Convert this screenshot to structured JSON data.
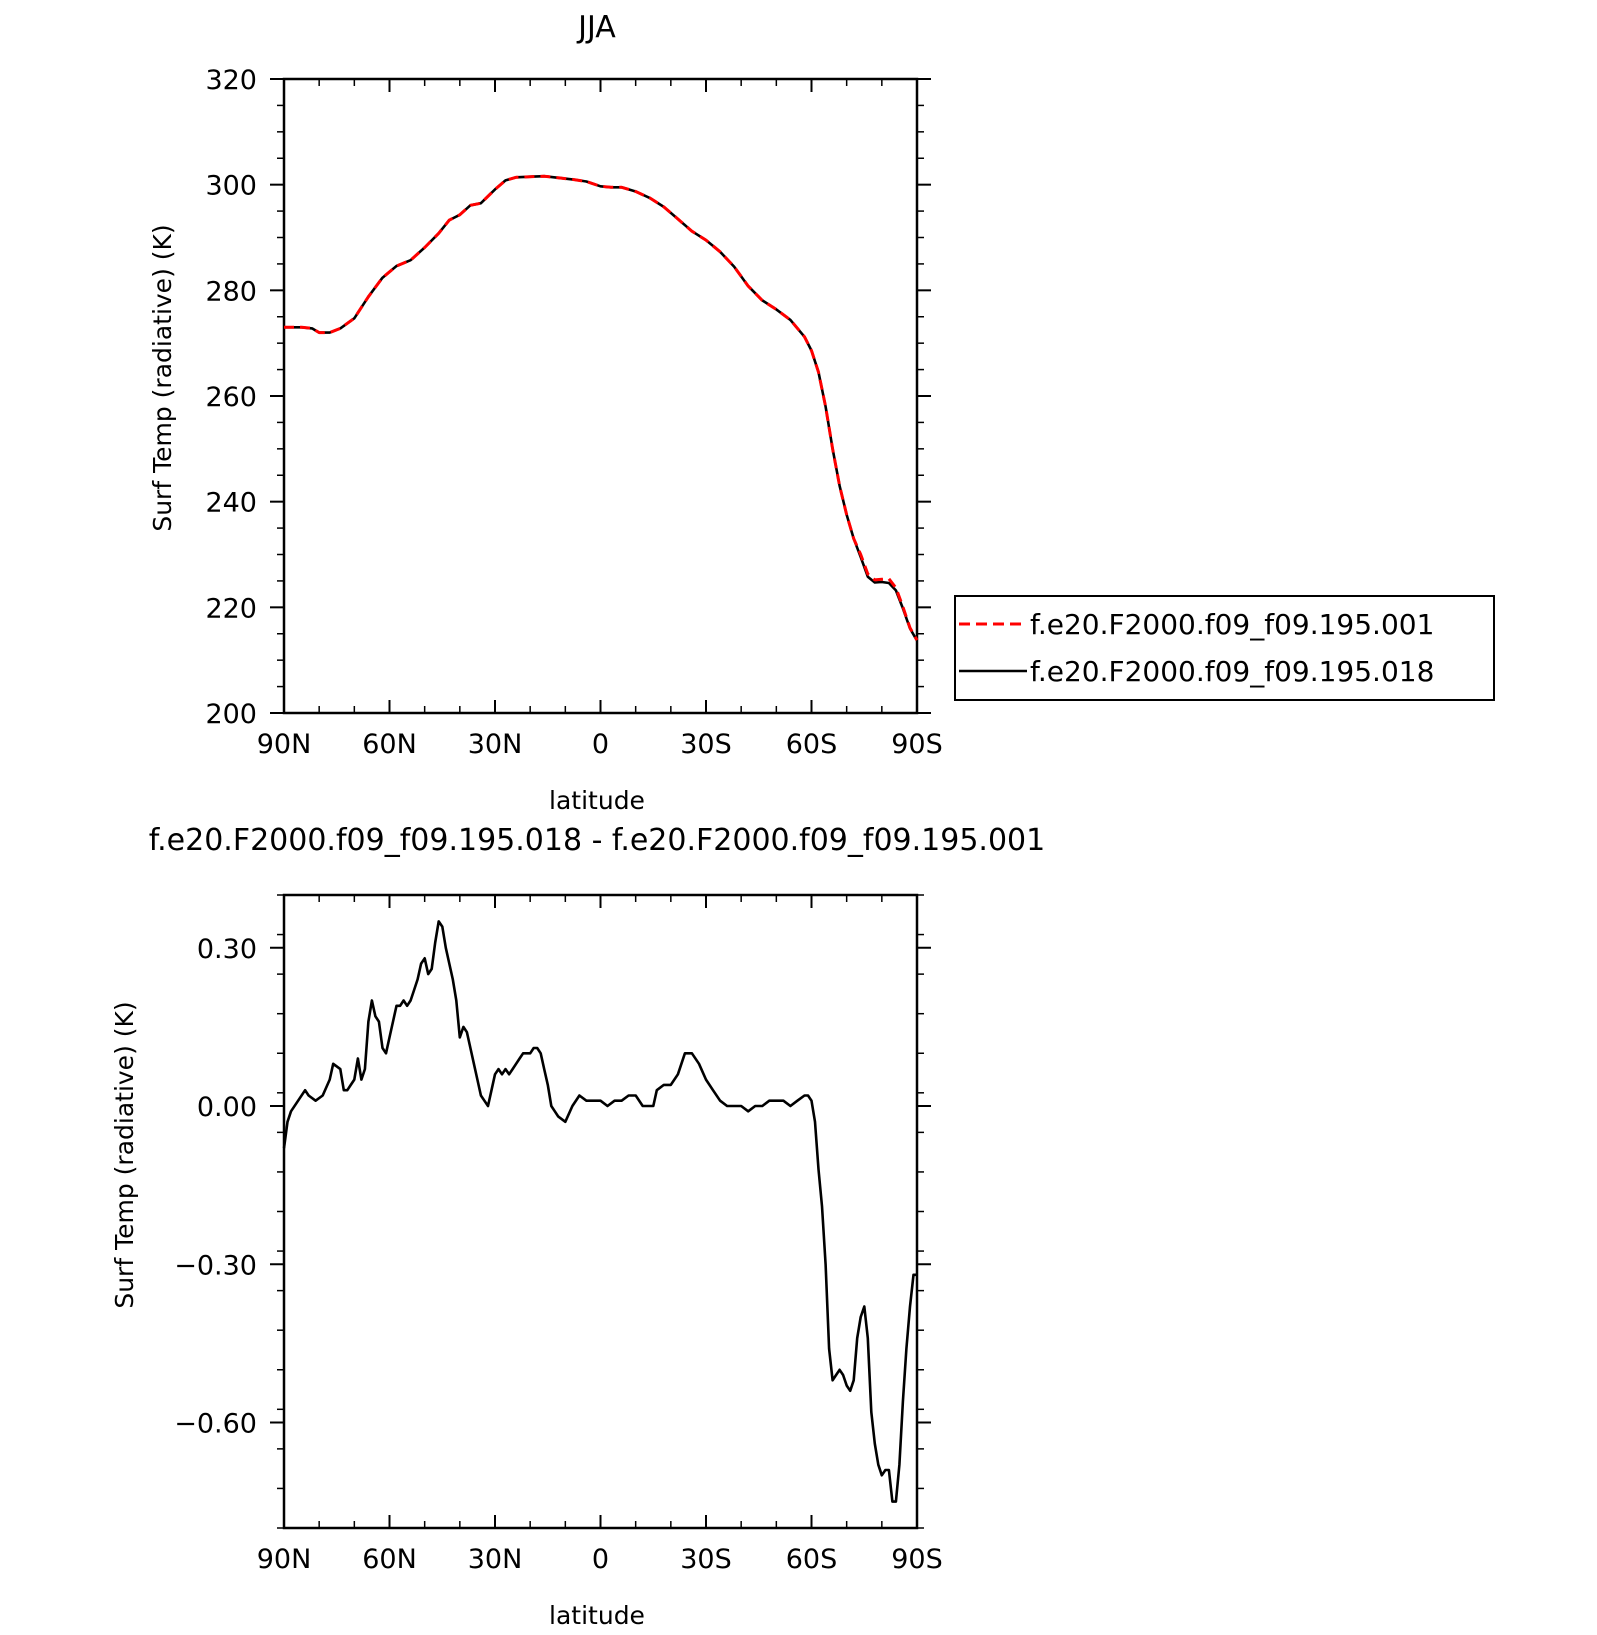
{
  "chart_data": [
    {
      "type": "line",
      "title": "JJA",
      "xlabel": "latitude",
      "ylabel": "Surf Temp (radiative) (K)",
      "xlim": [
        90,
        -90
      ],
      "ylim": [
        200,
        320
      ],
      "x_ticks": [
        90,
        60,
        30,
        0,
        -30,
        -60,
        -90
      ],
      "x_tick_labels": [
        "90N",
        "60N",
        "30N",
        "0",
        "30S",
        "60S",
        "90S"
      ],
      "y_ticks": [
        200,
        220,
        240,
        260,
        280,
        300,
        320
      ],
      "y_tick_labels": [
        "200",
        "220",
        "240",
        "260",
        "280",
        "300",
        "320"
      ],
      "legend_position": "right",
      "x": [
        90,
        85,
        82,
        80,
        77,
        74,
        70,
        66,
        62,
        58,
        54,
        50,
        46,
        43,
        40,
        37,
        34,
        30,
        27,
        24,
        20,
        16,
        12,
        8,
        4,
        0,
        -3,
        -6,
        -10,
        -14,
        -18,
        -22,
        -26,
        -30,
        -34,
        -38,
        -42,
        -46,
        -50,
        -54,
        -58,
        -60,
        -62,
        -64,
        -66,
        -68,
        -70,
        -72,
        -74,
        -76,
        -78,
        -80,
        -82,
        -84,
        -86,
        -88,
        -90
      ],
      "series": [
        {
          "name": "f.e20.F2000.f09_f09.195.001",
          "color": "#ff0000",
          "dash": "dashed",
          "values": [
            273,
            273,
            272.8,
            272,
            272,
            272.8,
            274.7,
            278.8,
            282.4,
            284.6,
            285.7,
            288.1,
            290.8,
            293.3,
            294.3,
            296.1,
            296.5,
            299.1,
            300.8,
            301.4,
            301.5,
            301.6,
            301.3,
            301.0,
            300.6,
            299.7,
            299.5,
            299.5,
            298.7,
            297.5,
            295.8,
            293.5,
            291.2,
            289.5,
            287.3,
            284.5,
            280.8,
            278.1,
            276.4,
            274.4,
            271.2,
            268.6,
            264.5,
            258,
            250,
            243,
            237.5,
            233,
            230,
            226.3,
            225.2,
            225.3,
            225.4,
            223.7,
            220.1,
            216.1,
            213.8
          ]
        },
        {
          "name": "f.e20.F2000.f09_f09.195.018",
          "color": "#000000",
          "dash": "solid",
          "values": [
            273,
            273,
            272.8,
            272,
            272,
            272.8,
            274.7,
            278.8,
            282.4,
            284.6,
            285.7,
            288.1,
            290.8,
            293.3,
            294.3,
            296.1,
            296.5,
            299.1,
            300.8,
            301.4,
            301.5,
            301.6,
            301.3,
            301.0,
            300.6,
            299.7,
            299.5,
            299.5,
            298.7,
            297.5,
            295.8,
            293.5,
            291.2,
            289.5,
            287.3,
            284.5,
            280.8,
            278.1,
            276.4,
            274.4,
            271.2,
            268.6,
            264.5,
            258,
            250,
            243,
            237.5,
            233,
            229.5,
            225.8,
            224.7,
            224.8,
            224.6,
            223.2,
            219.8,
            216,
            213.7
          ]
        }
      ]
    },
    {
      "type": "line",
      "title": "f.e20.F2000.f09_f09.195.018 - f.e20.F2000.f09_f09.195.001",
      "xlabel": "latitude",
      "ylabel": "Surf Temp (radiative) (K)",
      "xlim": [
        90,
        -90
      ],
      "ylim": [
        -0.8,
        0.4
      ],
      "x_ticks": [
        90,
        60,
        30,
        0,
        -30,
        -60,
        -90
      ],
      "x_tick_labels": [
        "90N",
        "60N",
        "30N",
        "0",
        "30S",
        "60S",
        "90S"
      ],
      "y_ticks": [
        0.3,
        0.0,
        -0.3,
        -0.6
      ],
      "y_tick_labels": [
        "0.30",
        "0.00",
        "−0.30",
        "−0.60"
      ],
      "x": [
        90,
        89,
        88,
        86,
        84,
        83,
        81,
        79,
        77,
        76,
        74,
        73,
        72,
        71,
        70,
        69,
        68,
        67,
        66,
        65,
        64,
        63,
        62,
        61,
        60,
        59,
        58,
        57,
        56,
        55,
        54,
        53,
        52,
        51,
        50,
        49,
        48,
        47,
        46,
        45,
        44,
        43,
        42,
        41,
        40,
        39,
        38,
        37,
        36,
        35,
        34,
        33,
        32,
        31,
        30,
        29,
        28,
        27,
        26,
        25,
        24,
        23,
        22,
        21,
        20,
        19,
        18,
        17,
        16,
        15,
        14,
        13,
        12,
        10,
        8,
        6,
        4,
        2,
        0,
        -2,
        -4,
        -6,
        -8,
        -10,
        -12,
        -14,
        -15,
        -16,
        -18,
        -20,
        -22,
        -24,
        -26,
        -28,
        -30,
        -32,
        -34,
        -36,
        -38,
        -40,
        -42,
        -44,
        -46,
        -48,
        -50,
        -52,
        -54,
        -56,
        -58,
        -59,
        -60,
        -61,
        -62,
        -63,
        -64,
        -65,
        -66,
        -67,
        -68,
        -69,
        -70,
        -71,
        -72,
        -73,
        -74,
        -75,
        -76,
        -77,
        -78,
        -79,
        -80,
        -81,
        -82,
        -83,
        -84,
        -85,
        -86,
        -87,
        -88,
        -89,
        -90
      ],
      "series": [
        {
          "name": "",
          "color": "#000000",
          "dash": "solid",
          "values": [
            -0.08,
            -0.03,
            -0.01,
            0.01,
            0.03,
            0.02,
            0.01,
            0.02,
            0.05,
            0.08,
            0.07,
            0.03,
            0.03,
            0.04,
            0.05,
            0.09,
            0.05,
            0.07,
            0.16,
            0.2,
            0.17,
            0.16,
            0.11,
            0.1,
            0.13,
            0.16,
            0.19,
            0.19,
            0.2,
            0.19,
            0.2,
            0.22,
            0.24,
            0.27,
            0.28,
            0.25,
            0.26,
            0.31,
            0.35,
            0.34,
            0.3,
            0.27,
            0.24,
            0.2,
            0.13,
            0.15,
            0.14,
            0.11,
            0.08,
            0.05,
            0.02,
            0.01,
            0.0,
            0.03,
            0.06,
            0.07,
            0.06,
            0.07,
            0.06,
            0.07,
            0.08,
            0.09,
            0.1,
            0.1,
            0.1,
            0.11,
            0.11,
            0.1,
            0.07,
            0.04,
            0.0,
            -0.01,
            -0.02,
            -0.03,
            0.0,
            0.02,
            0.01,
            0.01,
            0.01,
            0.0,
            0.01,
            0.01,
            0.02,
            0.02,
            0.0,
            0.0,
            0.0,
            0.03,
            0.04,
            0.04,
            0.06,
            0.1,
            0.1,
            0.08,
            0.05,
            0.03,
            0.01,
            0.0,
            0.0,
            0.0,
            -0.01,
            0.0,
            0.0,
            0.01,
            0.01,
            0.01,
            0.0,
            0.01,
            0.02,
            0.02,
            0.01,
            -0.03,
            -0.12,
            -0.19,
            -0.3,
            -0.46,
            -0.52,
            -0.51,
            -0.5,
            -0.51,
            -0.53,
            -0.54,
            -0.52,
            -0.44,
            -0.4,
            -0.38,
            -0.44,
            -0.58,
            -0.64,
            -0.68,
            -0.7,
            -0.69,
            -0.69,
            -0.75,
            -0.75,
            -0.68,
            -0.56,
            -0.46,
            -0.38,
            -0.32,
            -0.32
          ]
        }
      ]
    }
  ],
  "legend": {
    "entries": [
      {
        "label": "f.e20.F2000.f09_f09.195.001",
        "color": "#ff0000",
        "dash": "dashed"
      },
      {
        "label": "f.e20.F2000.f09_f09.195.018",
        "color": "#000000",
        "dash": "solid"
      }
    ]
  }
}
